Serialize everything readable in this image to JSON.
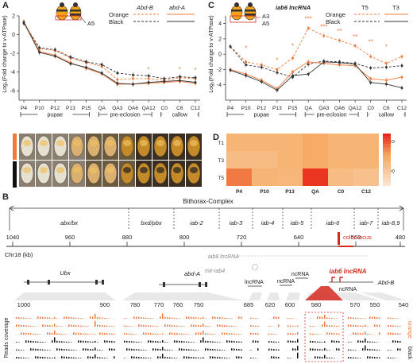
{
  "panels": {
    "A": "A",
    "B": "B",
    "C": "C",
    "D": "D"
  },
  "colors": {
    "orange": "#f07a3a",
    "black": "#333333",
    "red": "#d42a20",
    "heatHigh": "#e8261a",
    "heatLow": "#fbe4cf"
  },
  "panel_a": {
    "ylabel": "Log₂(Fold change to v-ATPase)",
    "segment_label": "A5",
    "legend": {
      "gene1": "Abd-B",
      "gene2": "abd-A",
      "orange": "Orange",
      "black": "Black"
    },
    "stages": [
      "pupae",
      "pre-eclosion",
      "callow"
    ]
  },
  "panel_c": {
    "ylabel": "Log₂(Fold change to v-ATPase)",
    "segment_labels": [
      "A3",
      "A5"
    ],
    "legend": {
      "gene1": "iab6 lncRNA",
      "gene2": "T5",
      "gene3": "T3",
      "orange": "Orange",
      "black": "Black"
    },
    "stages": [
      "pupae",
      "pre-eclosion",
      "callow"
    ]
  },
  "panel_d": {
    "rows": [
      "T1",
      "T3",
      "T5"
    ],
    "cols": [
      "P4",
      "P10",
      "P13",
      "QA",
      "C0",
      "C12"
    ],
    "scale": [
      "0",
      "-5"
    ]
  },
  "panel_b": {
    "complex": "Bithorax-Complex",
    "regions": [
      "abx/bx",
      "bxd/pbx",
      "iab-2",
      "iab-3",
      "iab-4",
      "iab-5",
      "iab-6",
      "iab-7",
      "iab-8,9"
    ],
    "axis_label": "Chr18 (kb)",
    "axis_ticks": [
      "1040",
      "960",
      "880",
      "800",
      "720",
      "640",
      "560",
      "480"
    ],
    "color_locus": "color locus",
    "iab8": "iab8 lncRNA",
    "mir": "mir-iab4",
    "genes": {
      "ubx": "Ubx",
      "abda": "abd-A",
      "abdb": "Abd-B",
      "iab6": "iab6 lncRNA",
      "lnc1": "lncRNA",
      "nc1": "ncRNA",
      "nc2": "ncRNA",
      "nc3": "ncRNA"
    },
    "zoom_ticks": [
      "1000",
      "900",
      "780",
      "770",
      "760",
      "750",
      "685",
      "620",
      "600",
      "580",
      "570",
      "550",
      "540"
    ],
    "reads_label": "Reads coverage",
    "track_labels": [
      "orange",
      "black"
    ]
  },
  "chart_data": [
    {
      "type": "line",
      "panel": "A",
      "x": [
        "P4",
        "P10",
        "P12",
        "P13",
        "P15",
        "QA",
        "QA3",
        "QA6",
        "QA12",
        "C0",
        "C6",
        "C12"
      ],
      "ylim": [
        -7,
        2
      ],
      "yticks": [
        2,
        0,
        -2,
        -4,
        -6
      ],
      "series": [
        {
          "name": "Abd-B Orange",
          "values": [
            1.3,
            -1.5,
            -1.7,
            -2.5,
            -3.0,
            -3.4,
            -4.8,
            -4.7,
            -4.7,
            -4.9,
            -4.6,
            -4.7
          ]
        },
        {
          "name": "Abd-B Black",
          "values": [
            1.2,
            -1.4,
            -1.6,
            -2.4,
            -2.9,
            -3.2,
            -4.1,
            -4.3,
            -4.4,
            -4.7,
            -4.5,
            -4.6
          ]
        },
        {
          "name": "abd-A Orange",
          "values": [
            1.4,
            -1.8,
            -2.2,
            -3.0,
            -3.6,
            -4.2,
            -5.3,
            -5.3,
            -5.2,
            -5.1,
            -5.0,
            -5.2
          ]
        },
        {
          "name": "abd-A Black",
          "values": [
            1.3,
            -1.9,
            -2.3,
            -3.1,
            -3.5,
            -4.1,
            -5.2,
            -5.3,
            -5.1,
            -5.0,
            -4.9,
            -5.1
          ]
        }
      ],
      "annotations": [
        "*",
        "*",
        "*"
      ]
    },
    {
      "type": "line",
      "panel": "C",
      "x": [
        "P4",
        "P10",
        "P12",
        "P13",
        "P15",
        "QA",
        "QA3",
        "QA6",
        "QA12",
        "C0",
        "C6",
        "C12"
      ],
      "ylim": [
        -6,
        5
      ],
      "yticks": [
        4,
        2,
        0,
        -2,
        -4
      ],
      "series": [
        {
          "name": "iab6 lncRNA Orange",
          "values": [
            1.0,
            -1.0,
            -1.4,
            -2.0,
            -0.5,
            3.4,
            2.4,
            1.8,
            1.1,
            -0.3,
            -1.2,
            -0.3
          ]
        },
        {
          "name": "iab6 lncRNA Black",
          "values": [
            1.0,
            -1.4,
            -1.7,
            -2.4,
            -3.0,
            -1.3,
            -0.9,
            -1.0,
            -1.2,
            -1.8,
            -1.7,
            -1.5
          ]
        },
        {
          "name": "T5 Orange",
          "values": [
            -2.0,
            -2.6,
            -3.4,
            -4.5,
            -2.3,
            -1.0,
            -1.2,
            -1.4,
            -1.5,
            -3.2,
            -3.4,
            -3.0
          ]
        },
        {
          "name": "T5 Black",
          "values": [
            -2.1,
            -2.8,
            -3.6,
            -4.7,
            -2.8,
            -2.6,
            -1.0,
            -1.1,
            -1.3,
            -3.7,
            -3.9,
            -4.4
          ]
        }
      ],
      "annotations": [
        "*",
        "*",
        "*",
        "***",
        "***",
        "**",
        "**",
        "**",
        "*"
      ]
    },
    {
      "type": "heatmap",
      "panel": "D",
      "rows": [
        "T1",
        "T3",
        "T5"
      ],
      "cols": [
        "P4",
        "P10",
        "P13",
        "QA",
        "C0",
        "C12"
      ],
      "values": [
        [
          -3,
          -3,
          -3,
          -2.5,
          -3,
          -3
        ],
        [
          -3.5,
          -3.5,
          -3,
          -2.5,
          -3,
          -3
        ],
        [
          -1.2,
          -3,
          -3.2,
          0.2,
          -3.5,
          -3.8
        ]
      ],
      "zlim": [
        -6,
        0.5
      ]
    }
  ]
}
